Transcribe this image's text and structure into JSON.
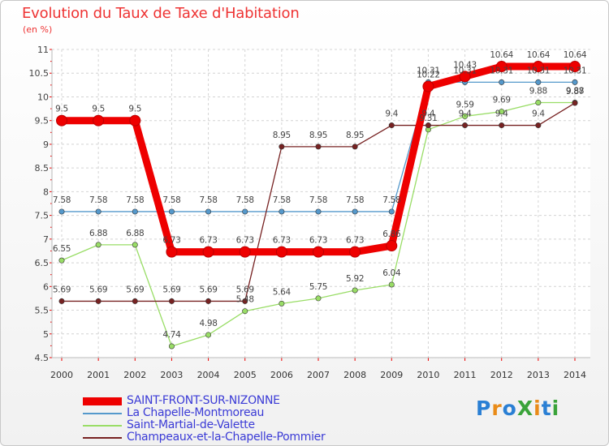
{
  "title": "Evolution du Taux de Taxe d'Habitation",
  "subtitle": "(en %)",
  "logo": {
    "text": "ProXiti",
    "colors": [
      "#2a7fd4",
      "#e98b18",
      "#2a7fd4",
      "#3aa33a",
      "#e98b18",
      "#2a7fd4",
      "#3aa33a"
    ]
  },
  "chart_data": {
    "type": "line",
    "title": "Evolution du Taux de Taxe d'Habitation",
    "ylabel": "(en %)",
    "xlabel": "",
    "ylim": [
      4.5,
      11
    ],
    "yticks": [
      "4.5",
      "5",
      "5.5",
      "6",
      "6.5",
      "7",
      "7.5",
      "8",
      "8.5",
      "9",
      "9.5",
      "10",
      "10.5",
      "11"
    ],
    "x": [
      "2000",
      "2001",
      "2002",
      "2003",
      "2004",
      "2005",
      "2006",
      "2007",
      "2008",
      "2009",
      "2010",
      "2011",
      "2012",
      "2013",
      "2014"
    ],
    "grid": true,
    "series": [
      {
        "name": "SAINT-FRONT-SUR-NIZONNE",
        "color": "#ee0000",
        "values": [
          9.5,
          9.5,
          9.5,
          6.73,
          6.73,
          6.73,
          6.73,
          6.73,
          6.73,
          6.86,
          10.22,
          10.43,
          10.64,
          10.64,
          10.64
        ],
        "labels": [
          "9.5",
          "9.5",
          "9.5",
          "6.73",
          "6.73",
          "6.73",
          "6.73",
          "6.73",
          "6.73",
          "6.86",
          "10.22",
          "10.43",
          "10.64",
          "10.64",
          "10.64"
        ]
      },
      {
        "name": "La Chapelle-Montmoreau",
        "color": "#5599cc",
        "values": [
          7.58,
          7.58,
          7.58,
          7.58,
          7.58,
          7.58,
          7.58,
          7.58,
          7.58,
          7.58,
          10.31,
          10.31,
          10.31,
          10.31,
          10.31
        ],
        "labels": [
          "7.58",
          "7.58",
          "7.58",
          "7.58",
          "7.58",
          "7.58",
          "7.58",
          "7.58",
          "7.58",
          "7.58",
          "10.31",
          "10.31",
          "10.31",
          "10.31",
          "10.31"
        ]
      },
      {
        "name": "Saint-Martial-de-Valette",
        "color": "#99dd66",
        "values": [
          6.55,
          6.88,
          6.88,
          4.74,
          4.98,
          5.48,
          5.64,
          5.75,
          5.92,
          6.04,
          9.31,
          9.59,
          9.69,
          9.88,
          9.88
        ],
        "labels": [
          "6.55",
          "6.88",
          "6.88",
          "4.74",
          "4.98",
          "5.48",
          "5.64",
          "5.75",
          "5.92",
          "6.04",
          "9.31",
          "9.59",
          "9.69",
          "9.88",
          "9.88"
        ]
      },
      {
        "name": "Champeaux-et-la-Chapelle-Pommier",
        "color": "#772222",
        "values": [
          5.69,
          5.69,
          5.69,
          5.69,
          5.69,
          5.69,
          8.95,
          8.95,
          8.95,
          9.4,
          9.4,
          9.4,
          9.4,
          9.4,
          9.87
        ],
        "labels": [
          "5.69",
          "5.69",
          "5.69",
          "5.69",
          "5.69",
          "5.69",
          "8.95",
          "8.95",
          "8.95",
          "9.4",
          "9.4",
          "9.4",
          "9.4",
          "9.4",
          "9.87"
        ]
      }
    ]
  }
}
